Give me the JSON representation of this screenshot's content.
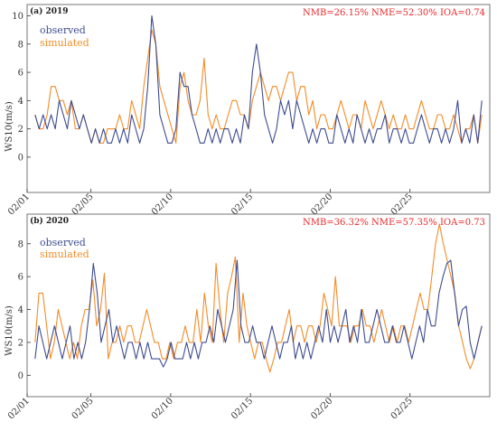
{
  "colors": {
    "observed": "#3d4c8f",
    "simulated": "#f28c28",
    "stats": "#e8262a"
  },
  "chart_data": [
    {
      "type": "line",
      "panel_label": "(a) 2019",
      "stats_text": "NMB=26.15% NME=52.30% IOA=0.74",
      "ylabel": "WS10(m/s)",
      "ylim": [
        -2.5,
        10.8
      ],
      "yticks": [
        "0",
        "2",
        "4",
        "6",
        "8",
        "10"
      ],
      "xticks": [
        {
          "label": "02/01",
          "pos": 0.5
        },
        {
          "label": "02/05",
          "pos": 4.5
        },
        {
          "label": "02/10",
          "pos": 9.5
        },
        {
          "label": "02/15",
          "pos": 14.5
        },
        {
          "label": "02/20",
          "pos": 19.5
        },
        {
          "label": "02/25",
          "pos": 24.5
        }
      ],
      "x": {
        "start_day": 1,
        "step_days": 0.25,
        "count": 112
      },
      "legend": {
        "position": "top-left"
      },
      "series": [
        {
          "name": "observed",
          "key": "observed",
          "values": [
            3,
            2,
            3,
            2,
            3,
            2,
            4,
            3,
            2,
            4,
            3,
            2,
            3,
            2,
            1,
            2,
            1,
            2,
            1,
            1,
            2,
            1,
            2,
            1,
            3,
            2,
            1,
            2,
            5,
            10,
            8,
            3,
            2,
            1,
            1,
            2,
            6,
            5,
            5,
            3,
            2,
            1,
            1,
            2,
            1,
            2,
            1,
            2,
            2,
            1,
            2,
            1,
            3,
            2,
            6,
            8,
            6,
            3,
            2,
            1,
            2,
            4,
            3,
            4,
            2,
            4,
            3,
            2,
            1,
            2,
            1,
            2,
            2,
            1,
            1,
            3,
            2,
            1,
            2,
            1,
            3,
            2,
            1,
            2,
            1,
            2,
            2,
            3,
            1,
            2,
            2,
            1,
            2,
            1,
            1,
            2,
            3,
            2,
            1,
            2,
            2,
            1,
            2,
            1,
            2,
            4,
            1,
            2,
            1,
            3,
            1,
            4
          ]
        },
        {
          "name": "simulated",
          "key": "simulated",
          "values": [
            3,
            2,
            2,
            3,
            5,
            5,
            4,
            4,
            3,
            4,
            2,
            2,
            3,
            2,
            1,
            2,
            1,
            1,
            2,
            2,
            2,
            3,
            2,
            2,
            4,
            3,
            2,
            5,
            7,
            9,
            8,
            5,
            4,
            3,
            2,
            1,
            5,
            6,
            4,
            3,
            3,
            4,
            7,
            3,
            2,
            3,
            2,
            2,
            3,
            4,
            4,
            3,
            3,
            2,
            4,
            5,
            6,
            5,
            4,
            5,
            5,
            4,
            5,
            6,
            6,
            4,
            5,
            5,
            3,
            4,
            2,
            3,
            3,
            2,
            2,
            3,
            4,
            3,
            2,
            3,
            3,
            2,
            4,
            3,
            2,
            3,
            4,
            3,
            2,
            3,
            2,
            2,
            3,
            2,
            2,
            3,
            4,
            3,
            2,
            2,
            3,
            3,
            2,
            2,
            3,
            2,
            1,
            2,
            2,
            3,
            1,
            3
          ]
        }
      ]
    },
    {
      "type": "line",
      "panel_label": "(b) 2020",
      "stats_text": "NMB=36.32% NME=57.35% IOA=0.73",
      "ylabel": "WS10(m/s)",
      "ylim": [
        -1.3,
        9.8
      ],
      "yticks": [
        "0",
        "2",
        "4",
        "6",
        "8"
      ],
      "xticks": [
        {
          "label": "02/01",
          "pos": 0.5
        },
        {
          "label": "02/05",
          "pos": 4.5
        },
        {
          "label": "02/10",
          "pos": 9.5
        },
        {
          "label": "02/15",
          "pos": 14.5
        },
        {
          "label": "02/20",
          "pos": 19.5
        },
        {
          "label": "02/25",
          "pos": 24.5
        }
      ],
      "x": {
        "start_day": 1,
        "step_days": 0.25,
        "count": 116
      },
      "legend": {
        "position": "top-left"
      },
      "series": [
        {
          "name": "observed",
          "key": "observed",
          "values": [
            1,
            3,
            2,
            1,
            2,
            3,
            2,
            1,
            2,
            3,
            1,
            2,
            1,
            2,
            4,
            6.8,
            5,
            2,
            3,
            4,
            2,
            3,
            2,
            1,
            2,
            2,
            1,
            2,
            1,
            2,
            1,
            1,
            1,
            0.5,
            1,
            2,
            1,
            1,
            1,
            2,
            1,
            2,
            1,
            2,
            2,
            3,
            2,
            4,
            3,
            2,
            3,
            4,
            7,
            3,
            2,
            2,
            3,
            2,
            2,
            1,
            2,
            3,
            2,
            1,
            2,
            2,
            3,
            1,
            2,
            1,
            2,
            1,
            2,
            3,
            2,
            4,
            2,
            3,
            2,
            3,
            4,
            2,
            3,
            2,
            4,
            2,
            2,
            3,
            4,
            3,
            2,
            2,
            3,
            2,
            2,
            3,
            2,
            1,
            2,
            3,
            2,
            4,
            3,
            3,
            5,
            6,
            6.8,
            7,
            5,
            3,
            4,
            4.2,
            2,
            1,
            2,
            3
          ]
        },
        {
          "name": "simulated",
          "key": "simulated",
          "values": [
            2,
            5,
            5,
            3,
            1,
            2,
            4,
            3,
            2,
            1,
            2,
            1,
            3,
            4,
            4,
            5.8,
            3,
            4,
            6.2,
            1,
            2,
            2,
            3,
            2,
            3,
            3,
            2,
            2,
            3,
            4,
            3,
            2,
            2,
            1,
            1,
            2,
            1,
            2,
            2,
            3,
            2,
            2,
            4,
            2,
            5,
            3,
            2,
            6.8,
            4,
            2,
            5,
            6,
            7.2,
            2,
            5,
            3,
            2,
            1,
            2,
            2,
            1,
            0.2,
            1,
            2,
            2,
            3,
            4,
            2,
            3,
            3,
            2,
            3,
            3,
            2,
            3,
            5,
            4,
            3,
            6,
            3,
            3,
            3,
            2,
            3,
            3,
            4,
            3,
            3,
            2,
            3,
            4,
            3,
            2,
            3,
            2,
            3,
            3,
            2,
            3,
            4,
            5,
            4,
            4,
            6,
            8,
            9.2,
            8,
            7,
            6,
            5,
            3,
            2,
            1,
            0.4,
            1,
            2,
            3
          ]
        }
      ]
    }
  ]
}
